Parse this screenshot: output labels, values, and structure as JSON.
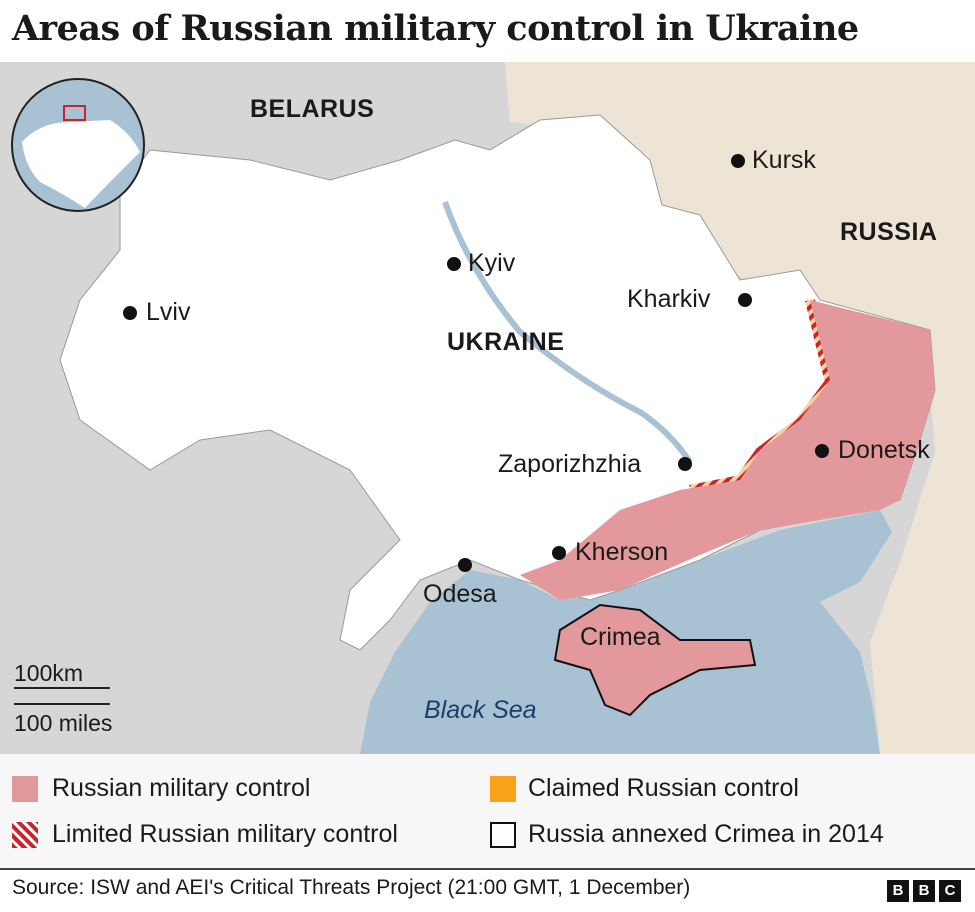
{
  "title": "Areas of Russian military control in Ukraine",
  "map": {
    "countries": [
      "BELARUS",
      "UKRAINE",
      "RUSSIA"
    ],
    "cities": [
      "Kursk",
      "Kyiv",
      "Lviv",
      "Kharkiv",
      "Donetsk",
      "Zaporizhzhia",
      "Kherson",
      "Odesa",
      "Crimea"
    ],
    "sea": "Black Sea",
    "scale": {
      "km": "100km",
      "miles": "100 miles"
    },
    "colors": {
      "land": "#ffffff",
      "other_land": "#d6d6d6",
      "russia_land": "#ede4d5",
      "sea": "#a8c2d4",
      "russian_control": "#e3999c",
      "claimed": "#f8a21a",
      "limited": "#c8242b"
    }
  },
  "legend": [
    {
      "label": "Russian military control",
      "color": "#e0989b"
    },
    {
      "label": "Claimed Russian control",
      "color": "#f8a21a"
    },
    {
      "label": "Limited Russian military control",
      "color": "#c8242b"
    },
    {
      "label": "Russia annexed Crimea in 2014",
      "color": "#111111"
    }
  ],
  "source": "Source: ISW and AEI's Critical Threats Project (21:00 GMT, 1 December)",
  "logo": [
    "B",
    "B",
    "C"
  ]
}
